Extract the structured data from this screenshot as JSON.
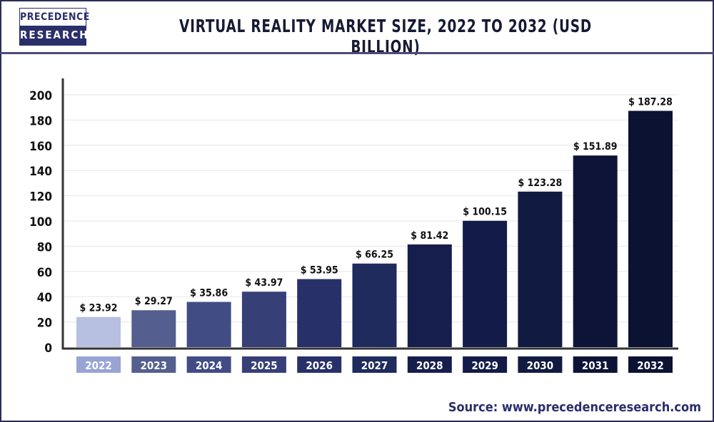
{
  "logo": {
    "line1": "PRECEDENCE",
    "line2": "RESEARCH"
  },
  "chart_data": {
    "type": "bar",
    "title": "VIRTUAL REALITY MARKET SIZE, 2022 TO 2032 (USD BILLION)",
    "xlabel": "",
    "ylabel": "",
    "categories": [
      "2022",
      "2023",
      "2024",
      "2025",
      "2026",
      "2027",
      "2028",
      "2029",
      "2030",
      "2031",
      "2032"
    ],
    "values": [
      23.92,
      29.27,
      35.86,
      43.97,
      53.95,
      66.25,
      81.42,
      100.15,
      123.28,
      151.89,
      187.28
    ],
    "data_labels": [
      "$ 23.92",
      "$ 29.27",
      "$ 35.86",
      "$ 43.97",
      "$ 53.95",
      "$ 66.25",
      "$ 81.42",
      "$ 100.15",
      "$ 123.28",
      "$ 151.89",
      "$ 187.28"
    ],
    "ylim": [
      0,
      200
    ],
    "yticks": [
      0,
      20,
      40,
      60,
      80,
      100,
      120,
      140,
      160,
      180,
      200
    ],
    "grid": true,
    "bar_colors": [
      "#b7c0e0",
      "#545f8f",
      "#424c84",
      "#363f76",
      "#28306a",
      "#1e2b5c",
      "#161e4e",
      "#131b48",
      "#111a40",
      "#0d1437",
      "#0b1232"
    ],
    "label_colors": [
      "#98a4d4",
      "#545f8f",
      "#424c84",
      "#363f76",
      "#28306a",
      "#1e2b5c",
      "#161e4e",
      "#131b48",
      "#111a40",
      "#0d1437",
      "#0b1232"
    ]
  },
  "source": "Source: www.precedenceresearch.com"
}
